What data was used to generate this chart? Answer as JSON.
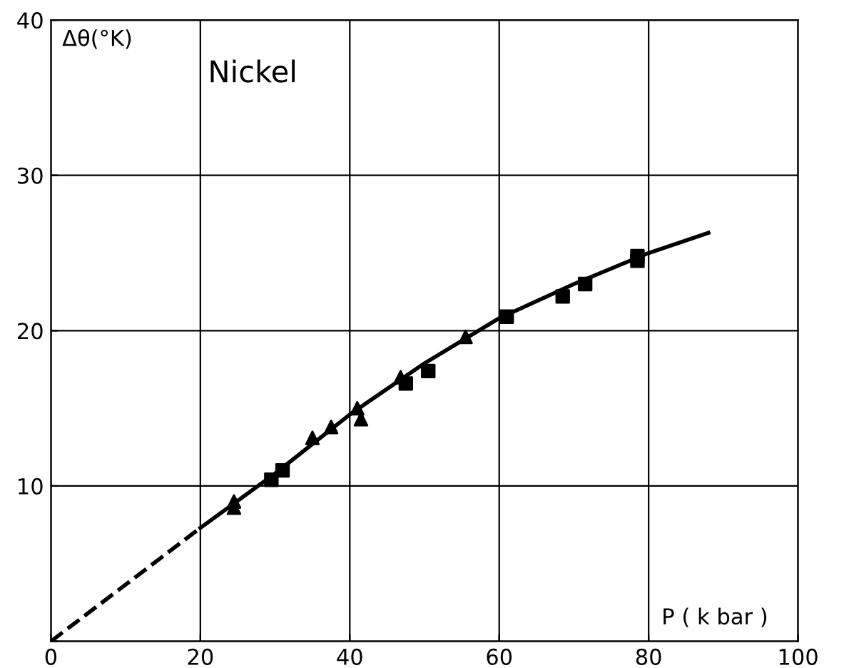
{
  "chart_data": {
    "type": "scatter",
    "title": "Nickel",
    "xlabel": "P ( k bar )",
    "ylabel": "Δθ(°K)",
    "xlim": [
      0,
      100
    ],
    "ylim": [
      0,
      40
    ],
    "xticks": [
      0,
      20,
      40,
      60,
      80,
      100
    ],
    "yticks": [
      {
        "value": 0,
        "label": null
      },
      10,
      20,
      30,
      40
    ],
    "grid": true,
    "series": [
      {
        "marker": "triangle",
        "color": "#000000",
        "x": [
          24.5,
          24.5,
          35,
          37.5,
          41,
          41.5,
          46.8,
          55.5
        ],
        "values": [
          9.0,
          8.6,
          13.1,
          13.8,
          15.0,
          14.3,
          17.0,
          19.6
        ]
      },
      {
        "marker": "square",
        "color": "#000000",
        "x": [
          29.5,
          31,
          47.5,
          50.5,
          61,
          68.5,
          71.5,
          78.5,
          78.5
        ],
        "values": [
          10.4,
          11.0,
          16.6,
          17.4,
          20.9,
          22.2,
          23.0,
          24.5,
          24.8
        ]
      },
      {
        "type": "line",
        "line_style": "dashed",
        "color": "#000000",
        "x": [
          0,
          20
        ],
        "values": [
          0,
          7.3
        ]
      },
      {
        "type": "line",
        "line_style": "solid",
        "color": "#000000",
        "x": [
          20,
          30,
          40,
          50,
          60,
          70,
          80,
          88
        ],
        "values": [
          7.3,
          10.8,
          14.6,
          17.9,
          20.8,
          23.0,
          25.0,
          26.3
        ]
      }
    ]
  }
}
